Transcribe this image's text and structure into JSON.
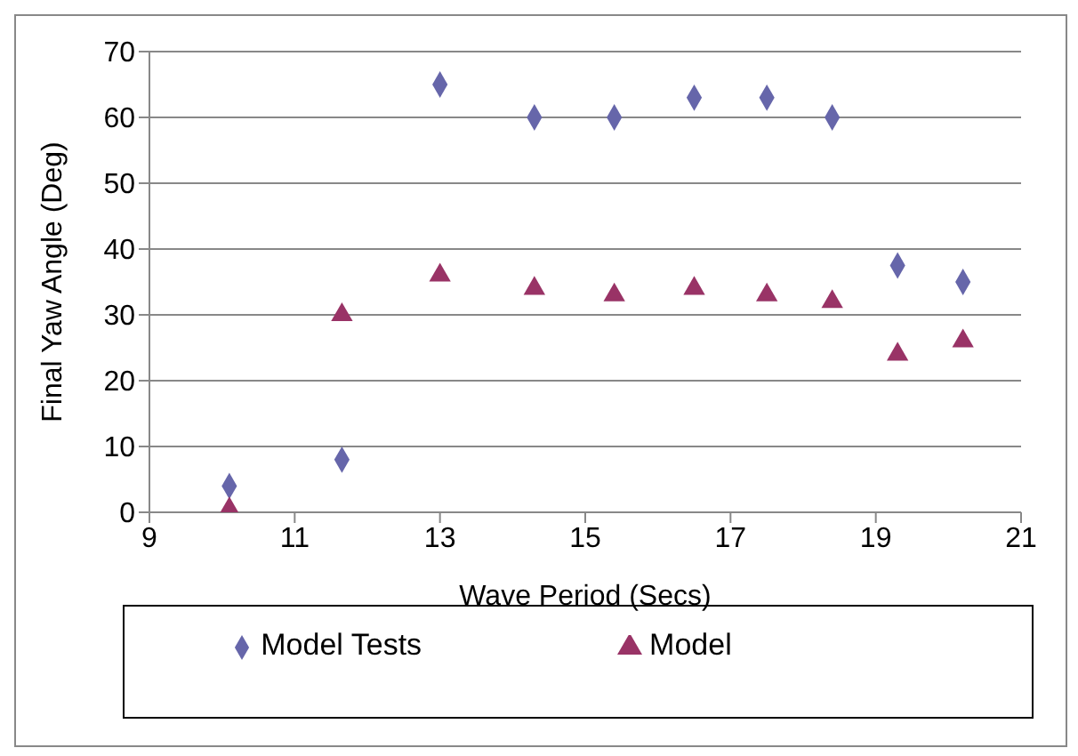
{
  "chart_data": {
    "type": "scatter",
    "xlabel": "Wave Period (Secs)",
    "ylabel": "Final Yaw Angle (Deg)",
    "xlim": [
      9,
      21
    ],
    "xticks": [
      9,
      11,
      13,
      15,
      17,
      19,
      21
    ],
    "ylim": [
      0,
      70
    ],
    "yticks": [
      0,
      10,
      20,
      30,
      40,
      50,
      60,
      70
    ],
    "grid": "y",
    "legend": "bottom",
    "series": [
      {
        "name": "Model Tests",
        "color": "#6666aa",
        "marker": "diamond",
        "x": [
          10.1,
          11.65,
          13,
          14.3,
          15.4,
          16.5,
          17.5,
          18.4,
          19.3,
          20.2
        ],
        "values": [
          4,
          8,
          65,
          60,
          60,
          63,
          63,
          60,
          37.5,
          35
        ]
      },
      {
        "name": "Model",
        "color": "#993366",
        "marker": "triangle",
        "x": [
          10.1,
          11.65,
          13,
          14.3,
          15.4,
          16.5,
          17.5,
          18.4,
          19.3,
          20.2
        ],
        "values": [
          0.5,
          30,
          36,
          34,
          33,
          34,
          33,
          32,
          24,
          26
        ]
      }
    ]
  }
}
